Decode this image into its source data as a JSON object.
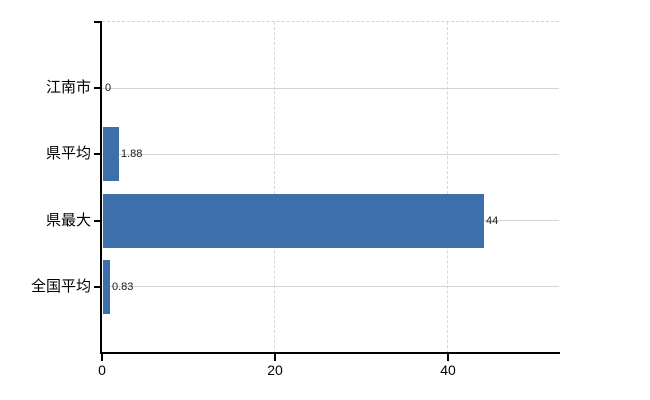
{
  "chart_data": {
    "type": "bar",
    "orientation": "horizontal",
    "title": "",
    "categories": [
      "江南市",
      "県平均",
      "県最大",
      "全国平均"
    ],
    "values": [
      0,
      1.88,
      44,
      0.83
    ],
    "value_labels": [
      "0",
      "1.88",
      "44",
      "0.83"
    ],
    "x_ticks": [
      0,
      20,
      40
    ],
    "x_tick_labels": [
      "0",
      "20",
      "40"
    ],
    "xlim": [
      0,
      52.9
    ],
    "grid": true,
    "legend": false,
    "colors": {
      "bar": "#3e6fad",
      "axis": "#000000",
      "category_gridline": "#cfd8cf",
      "value_gridline": "#d8d8d8",
      "top_border": "#d4d4d4",
      "category_text": "#000000",
      "value_text": "#1a1a1a",
      "tick_text": "#000000",
      "background": "#ffffff"
    }
  }
}
